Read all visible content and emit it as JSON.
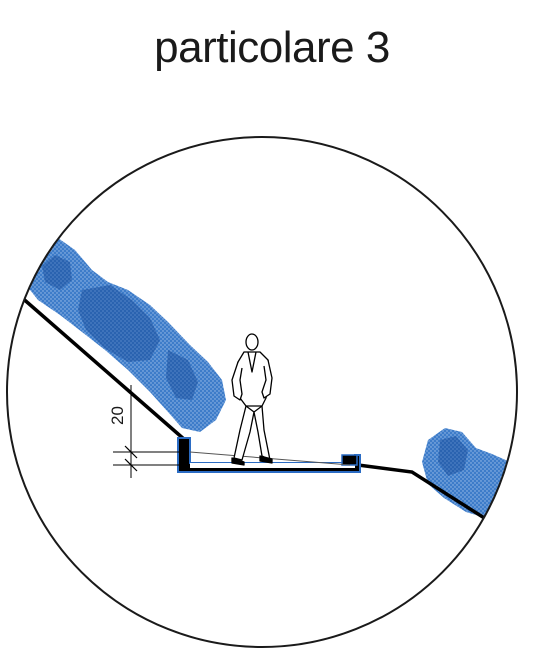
{
  "title": "particolare 3",
  "dimension_label": "20",
  "colors": {
    "vegetation": "#3d7cc9",
    "vegetation_dark": "#2a63b0",
    "ground": "#000000",
    "structure_outline": "#2b6cc4",
    "structure_fill": "#000000"
  },
  "icons": [
    "walking-person-icon",
    "tree-canopy-icon",
    "dimension-marker-icon"
  ]
}
